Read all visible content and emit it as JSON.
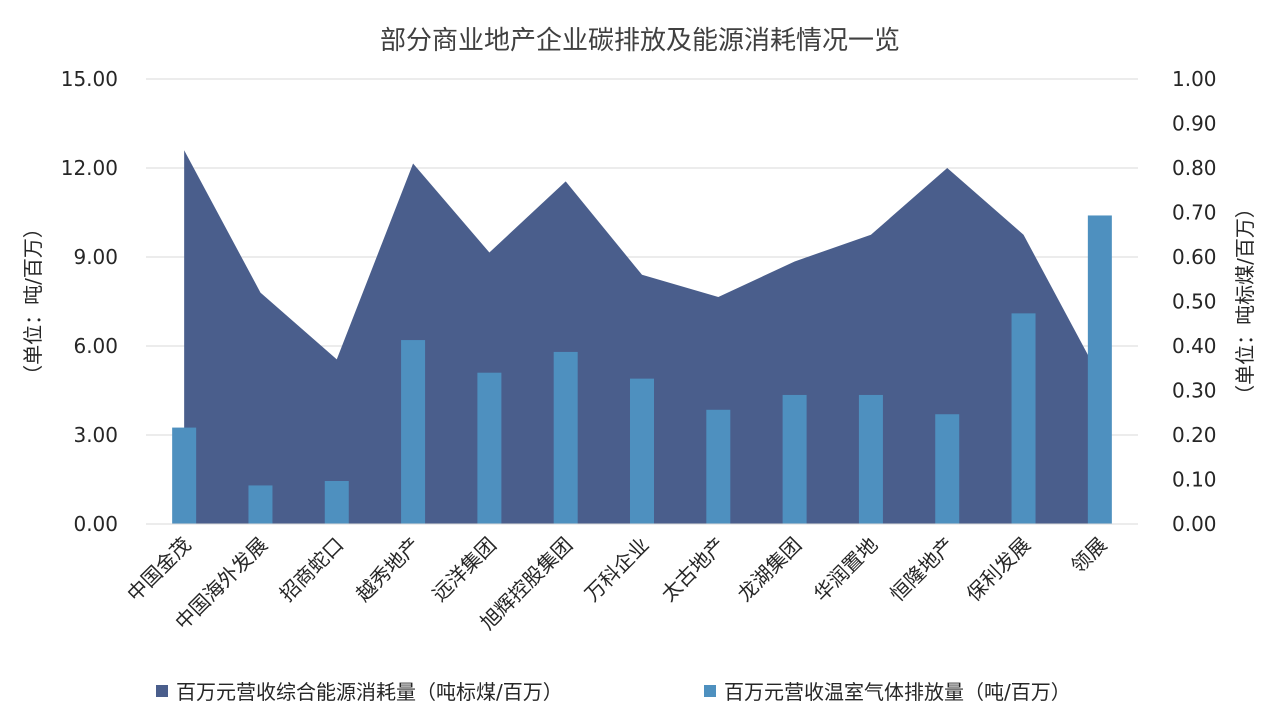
{
  "colors": {
    "area": "#4A5E8C",
    "bar": "#4E90BF",
    "grid": "#D9D9D9",
    "text": "#262626"
  },
  "chart_data": {
    "type": "bar",
    "title": "部分商业地产企业碳排放及能源消耗情况一览",
    "categories": [
      "中国金茂",
      "中国海外发展",
      "招商蛇口",
      "越秀地产",
      "远洋集团",
      "旭辉控股集团",
      "万科企业",
      "太古地产",
      "龙湖集团",
      "华润置地",
      "恒隆地产",
      "保利发展",
      "领展"
    ],
    "series": [
      {
        "name": "百万元营收综合能源消耗量（吨标煤/百万）",
        "chart": "area",
        "axis": "right",
        "values": [
          0.84,
          0.52,
          0.37,
          0.81,
          0.61,
          0.77,
          0.56,
          0.51,
          0.59,
          0.65,
          0.8,
          0.65,
          0.33
        ]
      },
      {
        "name": "百万元营收温室气体排放量（吨/百万）",
        "chart": "bar",
        "axis": "left",
        "values": [
          3.25,
          1.3,
          1.45,
          6.2,
          5.1,
          5.8,
          4.9,
          3.85,
          4.35,
          4.35,
          3.7,
          7.1,
          10.4
        ]
      }
    ],
    "y_left": {
      "label": "（单位：吨/百万）",
      "ylim": [
        0,
        15
      ],
      "ticks": [
        "0.00",
        "3.00",
        "6.00",
        "9.00",
        "12.00",
        "15.00"
      ]
    },
    "y_right": {
      "label": "（单位：吨标煤/百万）",
      "ylim": [
        0,
        1
      ],
      "ticks": [
        "0.00",
        "0.10",
        "0.20",
        "0.30",
        "0.40",
        "0.50",
        "0.60",
        "0.70",
        "0.80",
        "0.90",
        "1.00"
      ]
    },
    "grid": true,
    "legend_position": "bottom"
  }
}
